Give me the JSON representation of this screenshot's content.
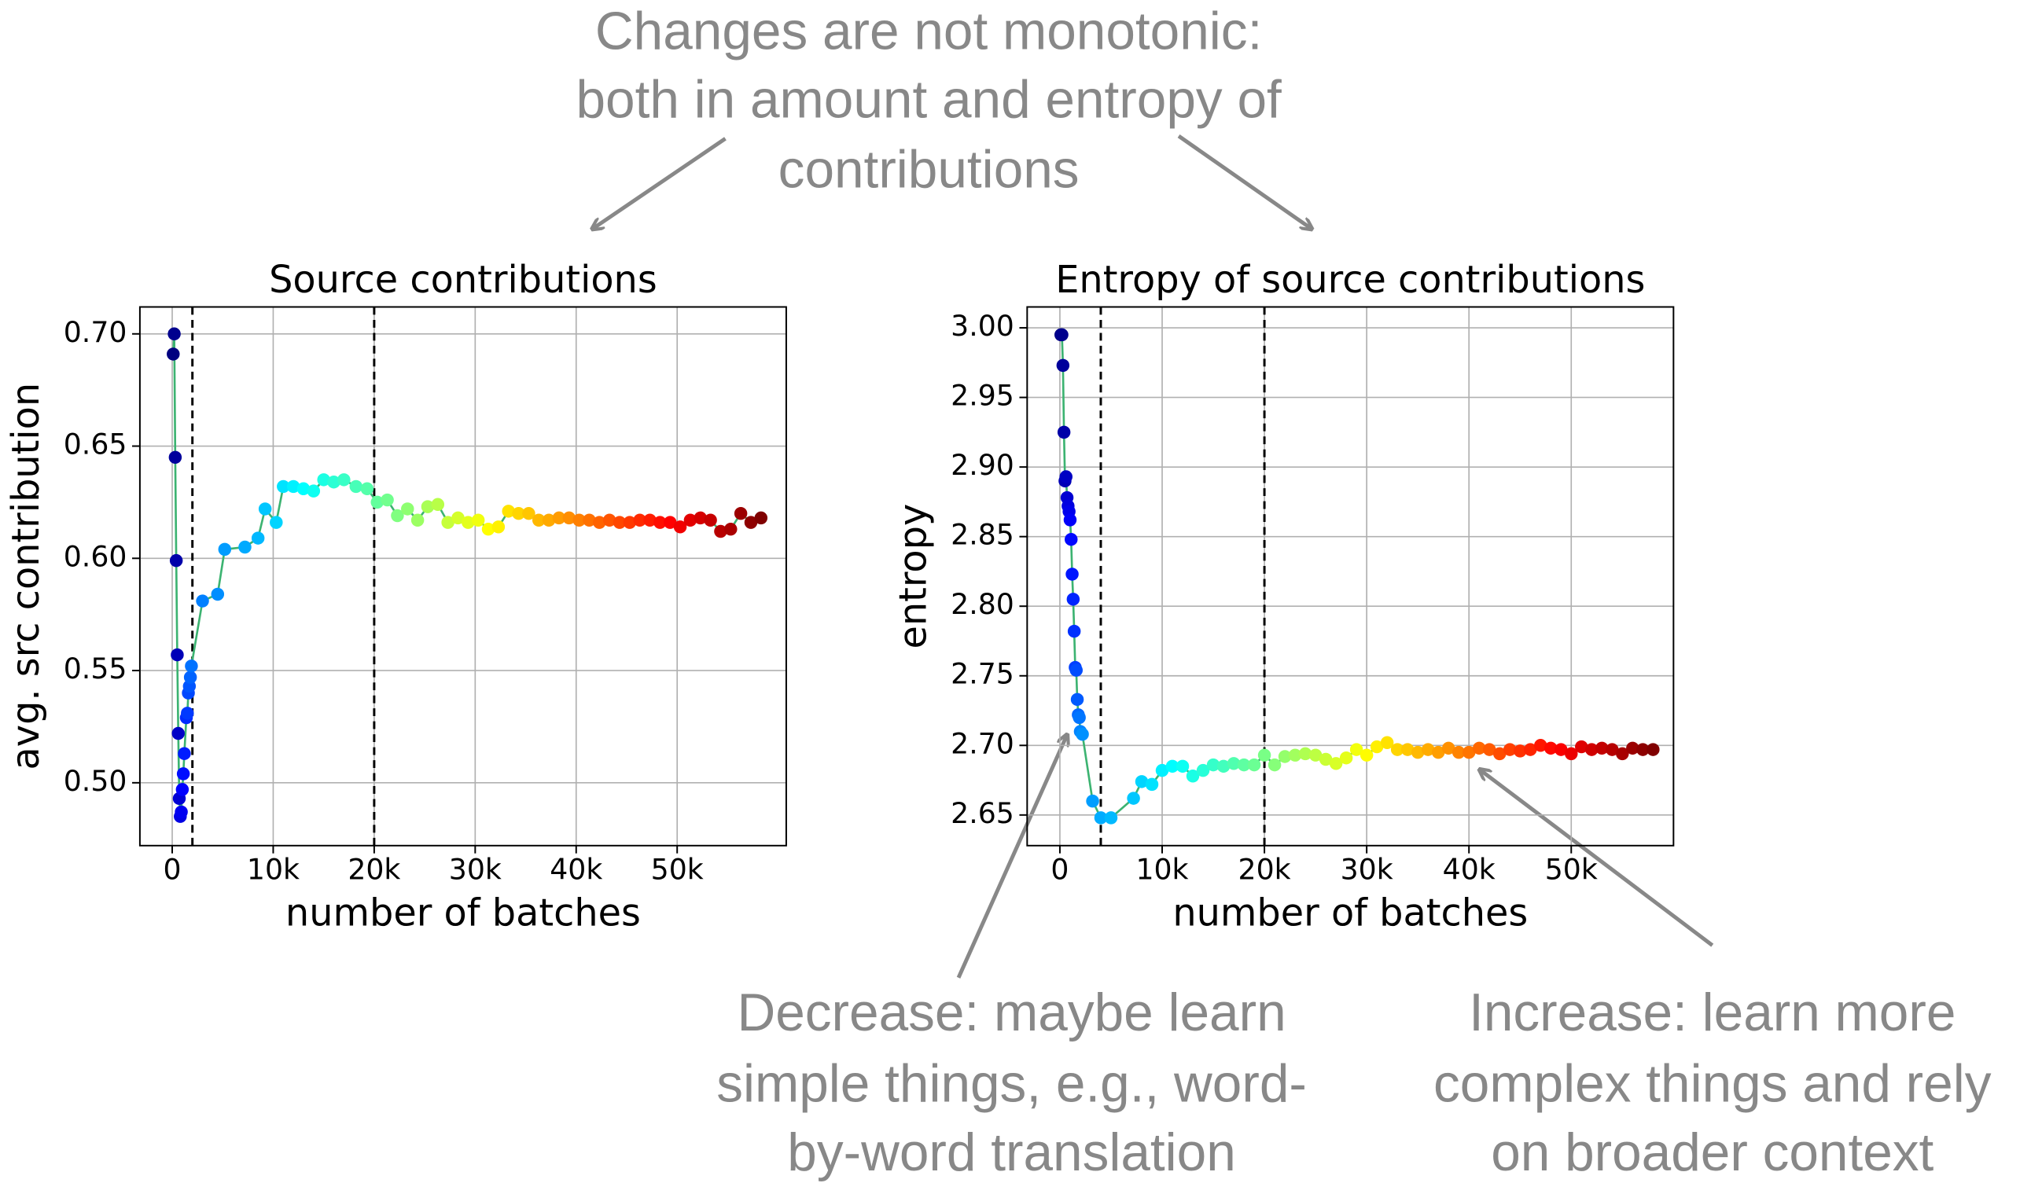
{
  "chart_data": [
    {
      "type": "line",
      "title": "Source contributions",
      "xlabel": "number of batches",
      "ylabel": "avg. src contribution",
      "x": [
        100,
        200,
        300,
        400,
        500,
        600,
        700,
        800,
        900,
        1000,
        1100,
        1200,
        1400,
        1500,
        1600,
        1700,
        1800,
        1900,
        3000,
        4500,
        5200,
        7200,
        8500,
        9200,
        10300,
        11000,
        12000,
        13000,
        14000,
        15000,
        16000,
        17000,
        18200,
        19300,
        20300,
        21300,
        22300,
        23300,
        24300,
        25300,
        26300,
        27300,
        28300,
        29300,
        30300,
        31300,
        32300,
        33300,
        34300,
        35300,
        36300,
        37300,
        38300,
        39300,
        40300,
        41300,
        42300,
        43300,
        44300,
        45300,
        46300,
        47300,
        48300,
        49300,
        50300,
        51300,
        52300,
        53300,
        54300,
        55300,
        56300,
        57300,
        58300
      ],
      "values": [
        0.691,
        0.7,
        0.645,
        0.599,
        0.557,
        0.522,
        0.493,
        0.485,
        0.487,
        0.497,
        0.504,
        0.513,
        0.529,
        0.531,
        0.54,
        0.543,
        0.547,
        0.552,
        0.581,
        0.584,
        0.604,
        0.605,
        0.609,
        0.622,
        0.616,
        0.632,
        0.632,
        0.631,
        0.63,
        0.635,
        0.634,
        0.635,
        0.632,
        0.631,
        0.625,
        0.626,
        0.619,
        0.622,
        0.617,
        0.623,
        0.624,
        0.616,
        0.618,
        0.616,
        0.617,
        0.613,
        0.614,
        0.621,
        0.62,
        0.62,
        0.617,
        0.617,
        0.618,
        0.618,
        0.617,
        0.617,
        0.616,
        0.617,
        0.616,
        0.616,
        0.617,
        0.617,
        0.616,
        0.616,
        0.614,
        0.617,
        0.618,
        0.617,
        0.612,
        0.613,
        0.62,
        0.616,
        0.618
      ],
      "line_color": "#3cb371",
      "colormap": "jet",
      "vlines": [
        2000,
        20000
      ],
      "grid": true,
      "xlim": [
        -3200,
        60800
      ],
      "ylim": [
        0.472,
        0.712
      ],
      "xticks": [
        0,
        {
          "value": 10000,
          "label": "10k"
        },
        {
          "value": 20000,
          "label": "20k"
        },
        {
          "value": 30000,
          "label": "30k"
        },
        {
          "value": 40000,
          "label": "40k"
        },
        {
          "value": 50000,
          "label": "50k"
        }
      ],
      "yticks": [
        {
          "value": 0.5,
          "label": "0.50"
        },
        0.55,
        {
          "value": 0.6,
          "label": "0.60"
        },
        0.65,
        {
          "value": 0.7,
          "label": "0.70"
        }
      ]
    },
    {
      "type": "line",
      "title": "Entropy of source contributions",
      "xlabel": "number of batches",
      "ylabel": "entropy",
      "x": [
        100,
        200,
        300,
        400,
        500,
        600,
        700,
        800,
        900,
        1000,
        1100,
        1200,
        1300,
        1400,
        1500,
        1600,
        1700,
        1800,
        1900,
        2000,
        2200,
        3200,
        4000,
        5000,
        7200,
        8000,
        9000,
        10000,
        11000,
        12000,
        13000,
        14000,
        15000,
        16000,
        17000,
        18000,
        19000,
        20000,
        21000,
        22000,
        23000,
        24000,
        25000,
        26000,
        27000,
        28000,
        29000,
        30000,
        31000,
        32000,
        33000,
        34000,
        35000,
        36000,
        37000,
        38000,
        39000,
        40000,
        41000,
        42000,
        43000,
        44000,
        45000,
        46000,
        47000,
        48000,
        49000,
        50000,
        51000,
        52000,
        53000,
        54000,
        55000,
        56000,
        57000,
        58000
      ],
      "values": [
        2.995,
        2.995,
        2.973,
        2.925,
        2.89,
        2.893,
        2.878,
        2.872,
        2.868,
        2.862,
        2.848,
        2.823,
        2.805,
        2.782,
        2.756,
        2.754,
        2.733,
        2.722,
        2.72,
        2.71,
        2.708,
        2.66,
        2.648,
        2.648,
        2.662,
        2.674,
        2.672,
        2.682,
        2.685,
        2.685,
        2.678,
        2.682,
        2.686,
        2.685,
        2.687,
        2.686,
        2.686,
        2.693,
        2.686,
        2.692,
        2.693,
        2.694,
        2.693,
        2.69,
        2.687,
        2.691,
        2.697,
        2.693,
        2.699,
        2.702,
        2.697,
        2.697,
        2.695,
        2.697,
        2.695,
        2.698,
        2.695,
        2.695,
        2.698,
        2.697,
        2.694,
        2.697,
        2.696,
        2.697,
        2.7,
        2.698,
        2.697,
        2.694,
        2.699,
        2.697,
        2.698,
        2.697,
        2.694,
        2.698,
        2.697,
        2.697
      ],
      "line_color": "#3cb371",
      "colormap": "jet",
      "vlines": [
        4000,
        20000
      ],
      "grid": true,
      "xlim": [
        -3200,
        60000
      ],
      "ylim": [
        2.628,
        3.015
      ],
      "xticks": [
        0,
        {
          "value": 10000,
          "label": "10k"
        },
        {
          "value": 20000,
          "label": "20k"
        },
        {
          "value": 30000,
          "label": "30k"
        },
        {
          "value": 40000,
          "label": "40k"
        },
        {
          "value": 50000,
          "label": "50k"
        }
      ],
      "yticks": [
        2.65,
        {
          "value": 2.7,
          "label": "2.70"
        },
        2.75,
        {
          "value": 2.8,
          "label": "2.80"
        },
        2.85,
        {
          "value": 2.9,
          "label": "2.90"
        },
        2.95,
        {
          "value": 3.0,
          "label": "3.00"
        }
      ]
    }
  ],
  "annotations": {
    "top": [
      "Changes are not monotonic:",
      "both in amount and entropy of",
      "contributions"
    ],
    "decrease": [
      "Decrease: maybe learn",
      "simple things, e.g., word-",
      "by-word translation"
    ],
    "increase": [
      "Increase: learn more",
      "complex things and rely",
      "on broader context"
    ]
  }
}
